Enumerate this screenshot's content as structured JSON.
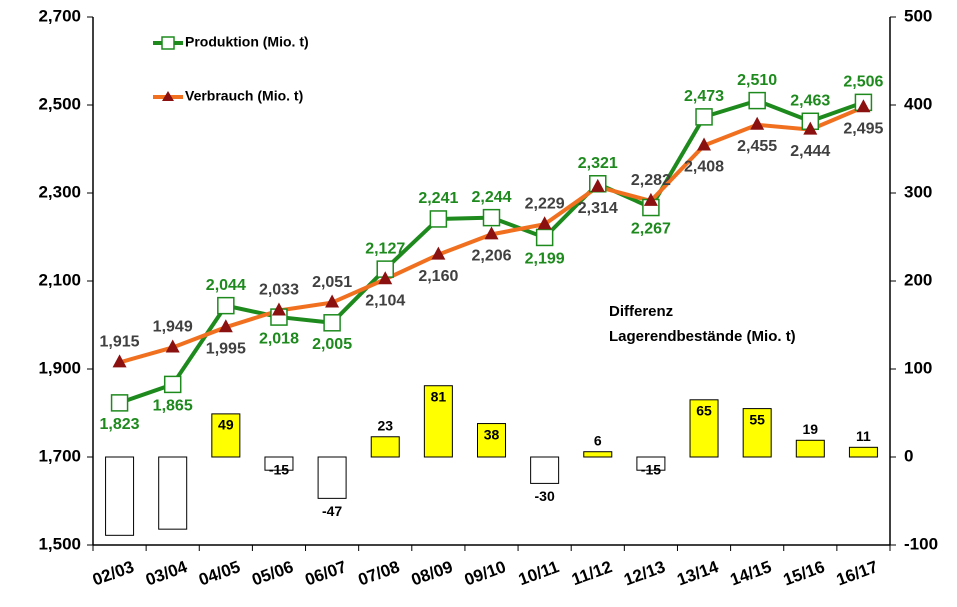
{
  "chart_data": {
    "type": "combo",
    "categories": [
      "02/03",
      "03/04",
      "04/05",
      "05/06",
      "06/07",
      "07/08",
      "08/09",
      "09/10",
      "10/11",
      "11/12",
      "12/13",
      "13/14",
      "14/15",
      "15/16",
      "16/17"
    ],
    "series": [
      {
        "name": "Produktion (Mio. t)",
        "color": "#1e8a1e",
        "marker": "square",
        "label_color": "#1e8a1e",
        "values": [
          1823,
          1865,
          2044,
          2018,
          2005,
          2127,
          2241,
          2244,
          2199,
          2321,
          2267,
          2473,
          2510,
          2463,
          2506
        ],
        "value_labels": [
          "1,823",
          "1,865",
          "2,044",
          "2,018",
          "2,005",
          "2,127",
          "2,241",
          "2,244",
          "2,199",
          "2,321",
          "2,267",
          "2,473",
          "2,510",
          "2,463",
          "2,506"
        ]
      },
      {
        "name": "Verbrauch (Mio. t)",
        "color": "#f07020",
        "marker": "triangle",
        "marker_color": "#8b1010",
        "label_color": "#404040",
        "values": [
          1915,
          1949,
          1995,
          2033,
          2051,
          2104,
          2160,
          2206,
          2229,
          2314,
          2282,
          2408,
          2455,
          2444,
          2495
        ],
        "value_labels": [
          "1,915",
          "1,949",
          "1,995",
          "2,033",
          "2,051",
          "2,104",
          "2,160",
          "2,206",
          "2,229",
          "2,314",
          "2,282",
          "2,408",
          "2,455",
          "2,444",
          "2,495"
        ]
      }
    ],
    "bars": {
      "axis": "y2",
      "positive_color": "#ffff00",
      "negative_color": "#ffffff",
      "values": [
        -89,
        -82,
        49,
        -15,
        -47,
        23,
        81,
        38,
        -30,
        6,
        -15,
        65,
        55,
        19,
        11
      ],
      "value_labels": [
        null,
        null,
        "49",
        "-15",
        "-47",
        "23",
        "81",
        "38",
        "-30",
        "6",
        "-15",
        "65",
        "55",
        "19",
        "11"
      ]
    },
    "annotation": [
      "Differenz",
      "Lagerendbestände (Mio. t)"
    ],
    "ylim": [
      1500,
      2700
    ],
    "yticks": [
      {
        "value": 1500,
        "label": "1,500"
      },
      {
        "value": 1700,
        "label": "1,700"
      },
      {
        "value": 1900,
        "label": "1,900"
      },
      {
        "value": 2100,
        "label": "2,100"
      },
      {
        "value": 2300,
        "label": "2,300"
      },
      {
        "value": 2500,
        "label": "2,500"
      },
      {
        "value": 2700,
        "label": "2,700"
      }
    ],
    "y2lim": [
      -100,
      500
    ],
    "y2ticks": [
      -100,
      0,
      100,
      200,
      300,
      400,
      500
    ],
    "legend": "top-left"
  }
}
